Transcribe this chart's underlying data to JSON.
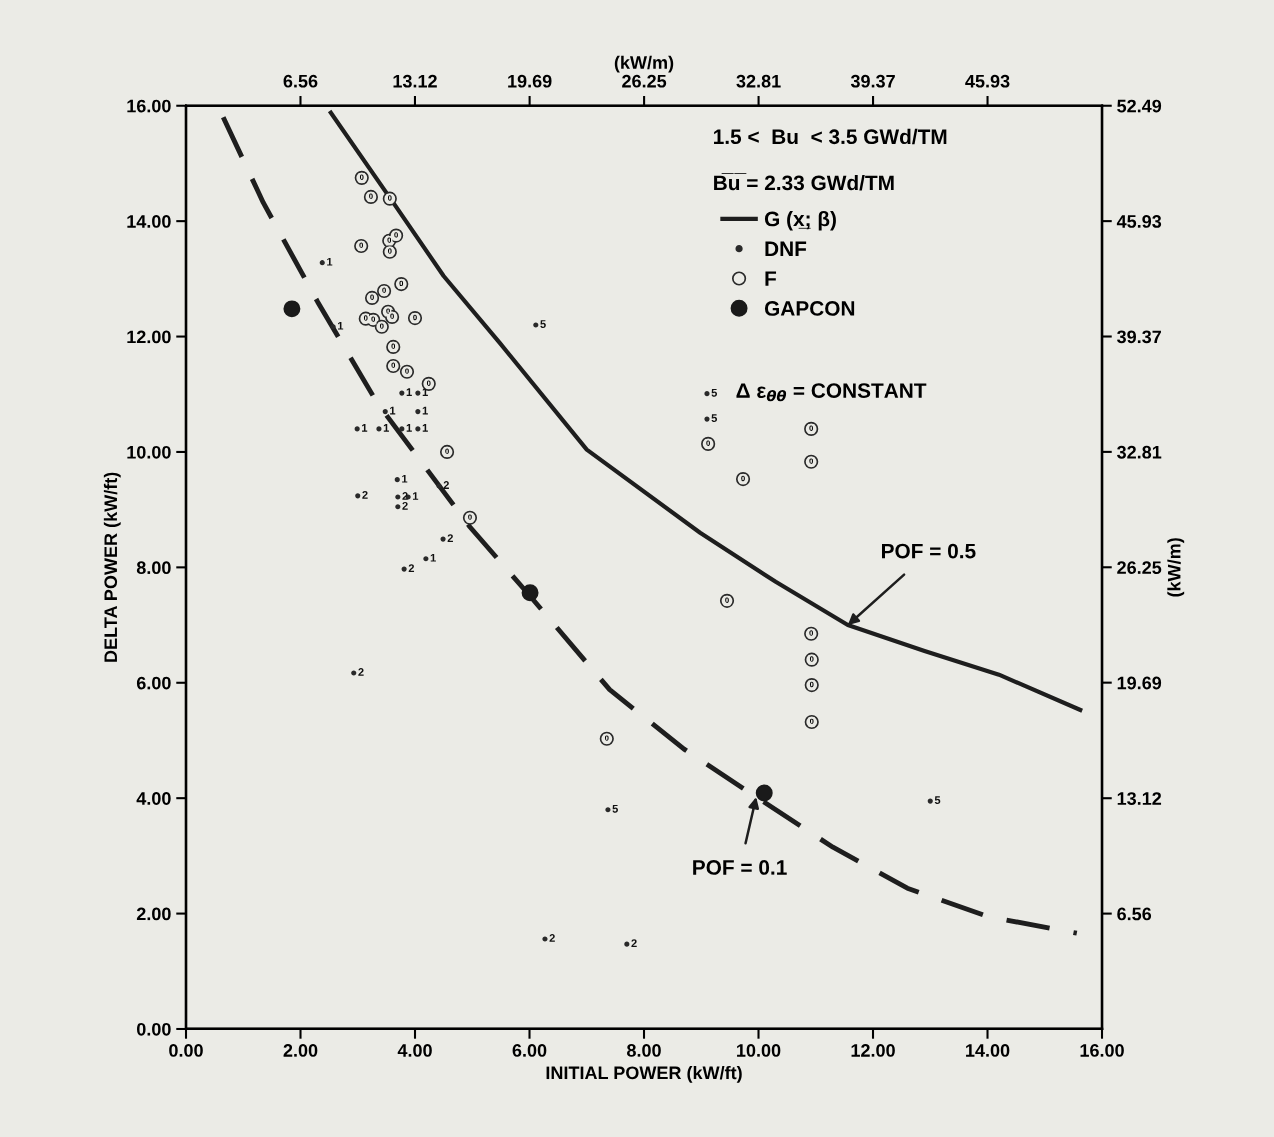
{
  "chart_data": {
    "type": "scatter",
    "xlabel": "INITIAL POWER (kW/ft)",
    "ylabel": "DELTA POWER (kW/ft)",
    "x2label": "(kW/m)",
    "y2label": "(kW/m)",
    "xlim": [
      0,
      16
    ],
    "ylim": [
      0,
      16
    ],
    "x2lim": [
      0,
      52.49
    ],
    "y2lim": [
      0,
      52.49
    ],
    "xticks": [
      {
        "value": 0,
        "label": "0.00"
      },
      {
        "value": 2,
        "label": "2.00"
      },
      {
        "value": 4,
        "label": "4.00"
      },
      {
        "value": 6,
        "label": "6.00"
      },
      {
        "value": 8,
        "label": "8.00"
      },
      {
        "value": 10,
        "label": "10.00"
      },
      {
        "value": 12,
        "label": "12.00"
      },
      {
        "value": 14,
        "label": "14.00"
      },
      {
        "value": 16,
        "label": "16.00"
      }
    ],
    "yticks": [
      {
        "value": 0,
        "label": "0.00"
      },
      {
        "value": 2,
        "label": "2.00"
      },
      {
        "value": 4,
        "label": "4.00"
      },
      {
        "value": 6,
        "label": "6.00"
      },
      {
        "value": 8,
        "label": "8.00"
      },
      {
        "value": 10,
        "label": "10.00"
      },
      {
        "value": 12,
        "label": "12.00"
      },
      {
        "value": 14,
        "label": "14.00"
      },
      {
        "value": 16,
        "label": "16.00"
      }
    ],
    "x2ticks": [
      6.56,
      13.12,
      19.69,
      26.25,
      32.81,
      39.37,
      45.93
    ],
    "y2ticks": [
      6.56,
      13.12,
      19.69,
      26.25,
      32.81,
      39.37,
      45.93,
      52.49
    ],
    "grid": false,
    "legend": "top right",
    "annotations": [
      "1.5 <  Bu  < 3.5 GWd/TM",
      "B̅u̅ = 2.33 GWd/TM",
      "Δ ε$_{θθ}$ = CONSTANT",
      {
        "text": "POF = 0.5",
        "x": 11.56,
        "y": 7.0
      },
      {
        "text": "POF = 0.1",
        "x": 9.96,
        "y": 4.02
      },
      {
        "text": "1",
        "x": 2.38,
        "y": 13.28
      },
      {
        "text": "1",
        "x": 2.57,
        "y": 12.17
      },
      {
        "text": "1",
        "x": 3.77,
        "y": 11.02
      },
      {
        "text": "1",
        "x": 4.05,
        "y": 11.02
      },
      {
        "text": "1",
        "x": 3.48,
        "y": 10.7
      },
      {
        "text": "1",
        "x": 4.05,
        "y": 10.7
      },
      {
        "text": "1",
        "x": 2.99,
        "y": 10.4
      },
      {
        "text": "1",
        "x": 3.37,
        "y": 10.4
      },
      {
        "text": "1",
        "x": 3.77,
        "y": 10.4
      },
      {
        "text": "1",
        "x": 4.05,
        "y": 10.4
      },
      {
        "text": "1",
        "x": 3.69,
        "y": 9.52
      },
      {
        "text": "2",
        "x": 3.0,
        "y": 9.24
      },
      {
        "text": "2",
        "x": 3.7,
        "y": 9.22
      },
      {
        "text": "1",
        "x": 3.88,
        "y": 9.22
      },
      {
        "text": "2",
        "x": 3.7,
        "y": 9.05
      },
      {
        "text": "2",
        "x": 4.42,
        "y": 9.41
      },
      {
        "text": "2",
        "x": 4.49,
        "y": 8.49
      },
      {
        "text": "1",
        "x": 4.19,
        "y": 8.15
      },
      {
        "text": "2",
        "x": 3.81,
        "y": 7.97
      },
      {
        "text": "2",
        "x": 2.93,
        "y": 6.17
      },
      {
        "text": "5",
        "x": 6.11,
        "y": 12.2
      },
      {
        "text": "5",
        "x": 9.1,
        "y": 11.01
      },
      {
        "text": "5",
        "x": 9.1,
        "y": 10.57
      },
      {
        "text": "5",
        "x": 7.37,
        "y": 3.8
      },
      {
        "text": "5",
        "x": 13.0,
        "y": 3.95
      },
      {
        "text": "2",
        "x": 6.27,
        "y": 1.56
      },
      {
        "text": "2",
        "x": 7.7,
        "y": 1.47
      },
      {
        "text": "0",
        "x": 3.07,
        "y": 14.75
      },
      {
        "text": "0",
        "x": 3.23,
        "y": 14.42
      },
      {
        "text": "0",
        "x": 3.56,
        "y": 14.39
      },
      {
        "text": "0",
        "x": 3.06,
        "y": 13.57
      },
      {
        "text": "0",
        "x": 3.55,
        "y": 13.66
      },
      {
        "text": "0",
        "x": 3.67,
        "y": 13.75
      },
      {
        "text": "0",
        "x": 3.56,
        "y": 13.47
      },
      {
        "text": "0",
        "x": 3.76,
        "y": 12.91
      },
      {
        "text": "0",
        "x": 3.46,
        "y": 12.79
      },
      {
        "text": "0",
        "x": 3.25,
        "y": 12.67
      },
      {
        "text": "0",
        "x": 3.14,
        "y": 12.31
      },
      {
        "text": "0",
        "x": 3.27,
        "y": 12.29
      },
      {
        "text": "0",
        "x": 3.42,
        "y": 12.17
      },
      {
        "text": "0",
        "x": 3.53,
        "y": 12.43
      },
      {
        "text": "0",
        "x": 3.6,
        "y": 12.34
      },
      {
        "text": "0",
        "x": 4.0,
        "y": 12.32
      },
      {
        "text": "0",
        "x": 3.62,
        "y": 11.82
      },
      {
        "text": "0",
        "x": 3.62,
        "y": 11.49
      },
      {
        "text": "0",
        "x": 3.86,
        "y": 11.39
      },
      {
        "text": "0",
        "x": 4.24,
        "y": 11.18
      },
      {
        "text": "0",
        "x": 4.56,
        "y": 10.0
      },
      {
        "text": "0",
        "x": 4.96,
        "y": 8.86
      },
      {
        "text": "0",
        "x": 9.12,
        "y": 10.14
      },
      {
        "text": "0",
        "x": 10.92,
        "y": 10.4
      },
      {
        "text": "0",
        "x": 10.92,
        "y": 9.83
      },
      {
        "text": "0",
        "x": 9.73,
        "y": 9.53
      },
      {
        "text": "0",
        "x": 9.45,
        "y": 7.42
      },
      {
        "text": "0",
        "x": 10.92,
        "y": 6.85
      },
      {
        "text": "0",
        "x": 10.93,
        "y": 6.4
      },
      {
        "text": "0",
        "x": 10.93,
        "y": 5.96
      },
      {
        "text": "0",
        "x": 10.93,
        "y": 5.32
      },
      {
        "text": "0",
        "x": 7.35,
        "y": 5.03
      }
    ],
    "series": [
      {
        "name": "G (x̲; β)",
        "type": "line",
        "line_style": "solid",
        "color": "#1e1e1e",
        "x": [
          2.53,
          3.62,
          4.5,
          5.48,
          7.0,
          8.98,
          10.3,
          11.56,
          12.9,
          14.2,
          15.62
        ],
        "values": [
          15.88,
          14.32,
          13.05,
          11.89,
          10.04,
          8.6,
          7.75,
          7.0,
          6.55,
          6.14,
          5.53
        ]
      },
      {
        "type": "line",
        "line_style": "dashed",
        "color": "#1e1e1e",
        "x": [
          0.65,
          1.35,
          2.3,
          3.34,
          4.96,
          5.96,
          7.4,
          8.7,
          9.96,
          11.3,
          12.6,
          14.0,
          15.56
        ],
        "values": [
          15.8,
          14.32,
          12.6,
          10.85,
          8.7,
          7.56,
          5.88,
          4.85,
          4.02,
          3.15,
          2.44,
          1.95,
          1.66
        ]
      },
      {
        "name": "DNF",
        "type": "scatter",
        "marker": "circle",
        "color": "#2a2a2a",
        "x": [
          2.38,
          2.57,
          3.77,
          4.05,
          3.48,
          4.05,
          2.99,
          3.37,
          3.77,
          4.05,
          3.69,
          3.0,
          3.7,
          3.88,
          3.7,
          4.42,
          4.49,
          4.19,
          3.81,
          2.93,
          6.11,
          9.1,
          9.1,
          7.37,
          13.0,
          6.27,
          7.7
        ],
        "values": [
          13.28,
          12.17,
          11.02,
          11.02,
          10.7,
          10.7,
          10.4,
          10.4,
          10.4,
          10.4,
          9.52,
          9.24,
          9.22,
          9.22,
          9.05,
          9.41,
          8.49,
          8.15,
          7.97,
          6.17,
          12.2,
          11.01,
          10.57,
          3.8,
          3.95,
          1.56,
          1.47
        ]
      },
      {
        "name": "F",
        "type": "scatter",
        "marker": "circle",
        "color": "#2a2a2a",
        "x": [
          3.07,
          3.23,
          3.56,
          3.06,
          3.55,
          3.67,
          3.56,
          3.76,
          3.46,
          3.25,
          3.14,
          3.27,
          3.42,
          3.53,
          3.6,
          4.0,
          3.62,
          3.62,
          3.86,
          4.24,
          4.56,
          4.96,
          9.12,
          10.92,
          10.92,
          9.73,
          9.45,
          10.92,
          10.93,
          10.93,
          10.93,
          7.35
        ],
        "values": [
          14.75,
          14.42,
          14.39,
          13.57,
          13.66,
          13.75,
          13.47,
          12.91,
          12.79,
          12.67,
          12.31,
          12.29,
          12.17,
          12.43,
          12.34,
          12.32,
          11.82,
          11.49,
          11.39,
          11.18,
          10.0,
          8.86,
          10.14,
          10.4,
          9.83,
          9.53,
          7.42,
          6.85,
          6.4,
          5.96,
          5.32,
          5.03
        ]
      },
      {
        "name": "GAPCON",
        "type": "scatter",
        "marker": "circle",
        "color": "#1a1a1a",
        "x": [
          1.85,
          6.01,
          10.1
        ],
        "values": [
          12.48,
          7.56,
          4.09
        ]
      }
    ]
  }
}
